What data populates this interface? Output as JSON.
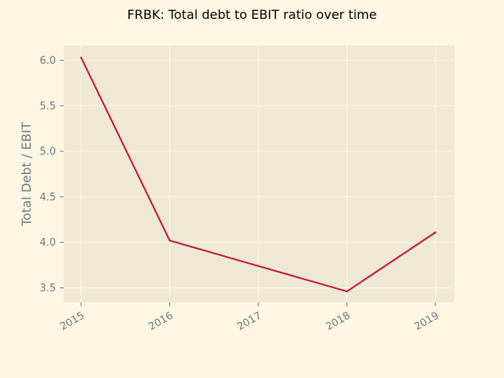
{
  "chart_data": {
    "type": "line",
    "title": "FRBK: Total debt to EBIT ratio over time",
    "xlabel": "",
    "ylabel": "Total Debt / EBIT",
    "x": [
      "2015",
      "2016",
      "2017",
      "2018",
      "2019"
    ],
    "series": [
      {
        "values": [
          6.03,
          4.02,
          3.74,
          3.46,
          4.11
        ],
        "color": "#c8102e"
      }
    ],
    "ylim": [
      3.34,
      6.16
    ],
    "yticks": [
      "3.5",
      "4.0",
      "4.5",
      "5.0",
      "5.5",
      "6.0"
    ],
    "xticks": [
      "2015",
      "2016",
      "2017",
      "2018",
      "2019"
    ],
    "grid": true,
    "colors": {
      "background": "#fdf6e3",
      "plot_area": "#eee8d5",
      "grid": "#fdf6e3",
      "text": "#6c7a80",
      "line": "#c8102e"
    }
  }
}
